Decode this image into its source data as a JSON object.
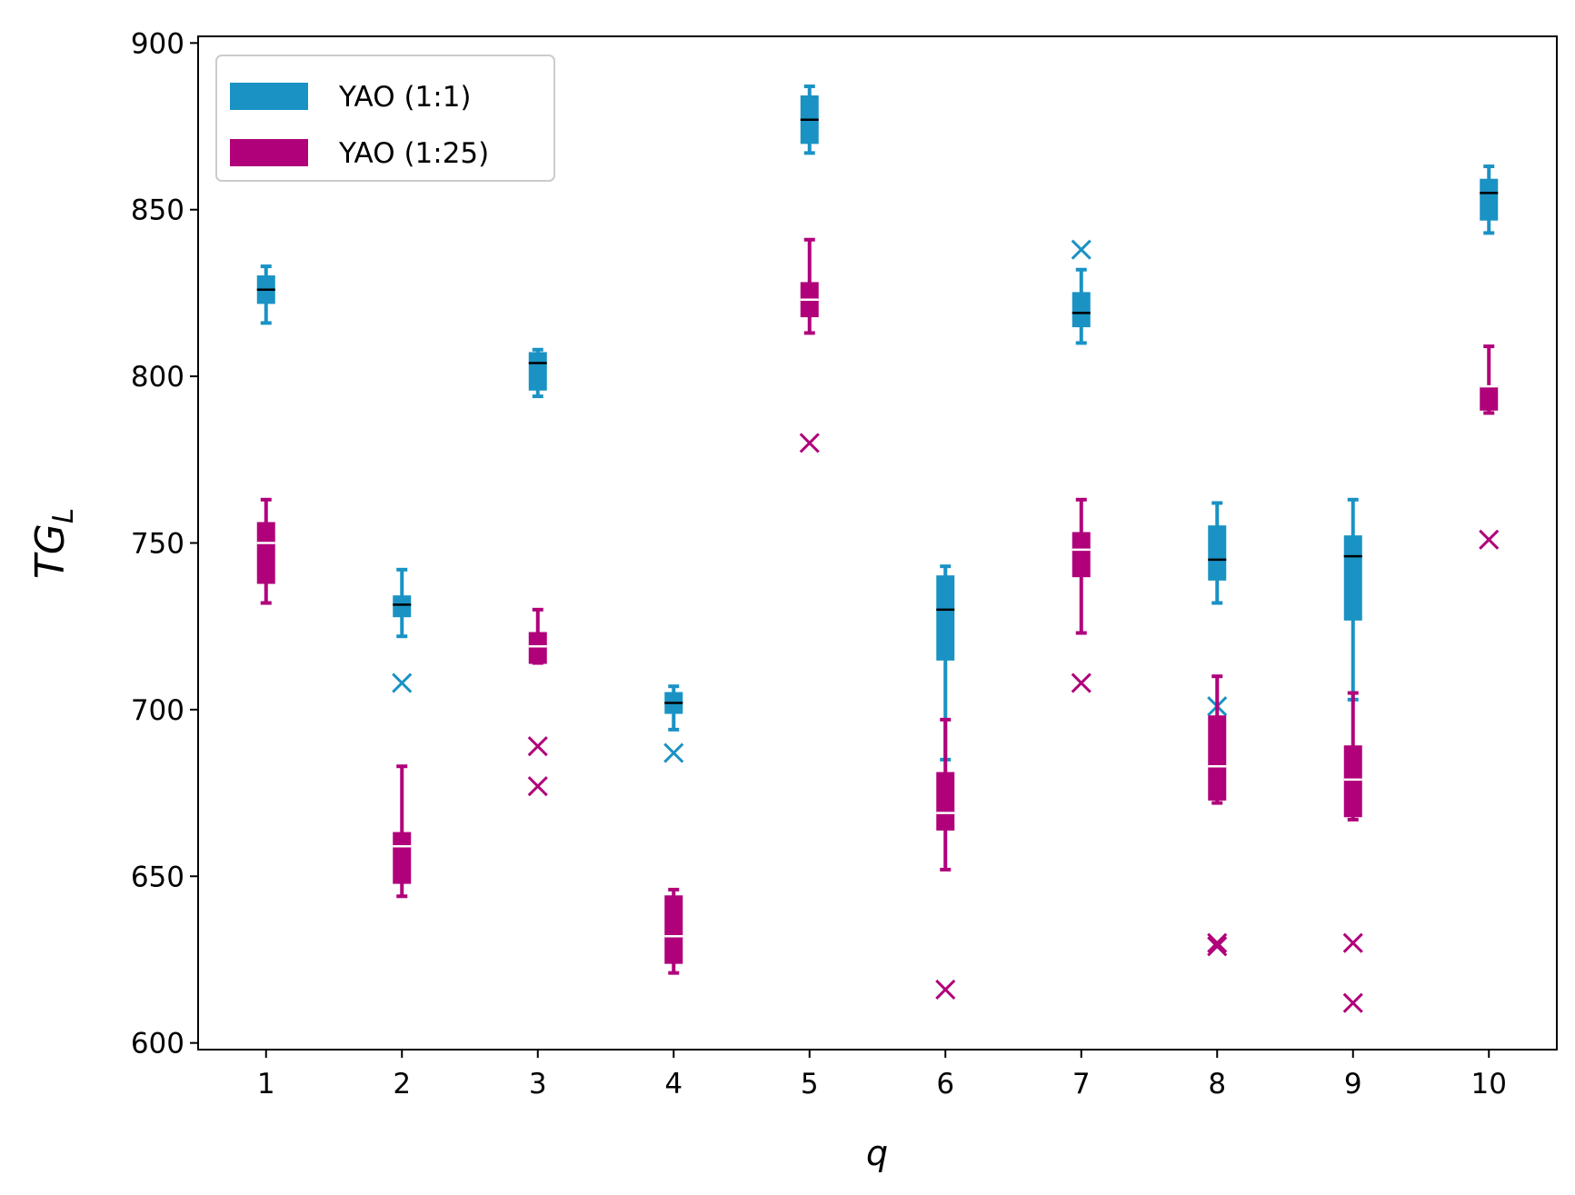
{
  "chart_data": {
    "type": "box",
    "ylabel": {
      "main": "TG",
      "sub": "L"
    },
    "xlabel": "q",
    "x": [
      1,
      2,
      3,
      4,
      5,
      6,
      7,
      8,
      9,
      10
    ],
    "xlim": [
      0.5,
      10.5
    ],
    "xticks": [
      1,
      2,
      3,
      4,
      5,
      6,
      7,
      8,
      9,
      10
    ],
    "ylim": [
      598,
      902
    ],
    "yticks": [
      600,
      650,
      700,
      750,
      800,
      850,
      900
    ],
    "legend": "upper left",
    "series": [
      {
        "name": "YAO (1:1)",
        "color": "#1a92c4",
        "median_color": "#000000",
        "boxes": [
          {
            "whislo": 816,
            "q1": 822,
            "med": 826,
            "q3": 830,
            "whishi": 833,
            "fliers": []
          },
          {
            "whislo": 722,
            "q1": 728,
            "med": 731.5,
            "q3": 734,
            "whishi": 742,
            "fliers": [
              708
            ]
          },
          {
            "whislo": 794,
            "q1": 796,
            "med": 804,
            "q3": 807,
            "whishi": 808,
            "fliers": []
          },
          {
            "whislo": 694,
            "q1": 699,
            "med": 702,
            "q3": 705,
            "whishi": 707,
            "fliers": [
              687
            ]
          },
          {
            "whislo": 867,
            "q1": 870,
            "med": 877,
            "q3": 884,
            "whishi": 887,
            "fliers": []
          },
          {
            "whislo": 685,
            "q1": 715,
            "med": 730,
            "q3": 740,
            "whishi": 743,
            "fliers": []
          },
          {
            "whislo": 810,
            "q1": 815,
            "med": 819,
            "q3": 825,
            "whishi": 832,
            "fliers": [
              838
            ]
          },
          {
            "whislo": 732,
            "q1": 739,
            "med": 745,
            "q3": 755,
            "whishi": 762,
            "fliers": [
              701
            ]
          },
          {
            "whislo": 703,
            "q1": 727,
            "med": 746,
            "q3": 752,
            "whishi": 763,
            "fliers": []
          },
          {
            "whislo": 843,
            "q1": 847,
            "med": 855,
            "q3": 859,
            "whishi": 863,
            "fliers": []
          }
        ]
      },
      {
        "name": "YAO (1:25)",
        "color": "#b0007a",
        "median_color": "#ffffff",
        "boxes": [
          {
            "whislo": 732,
            "q1": 738,
            "med": 750,
            "q3": 756,
            "whishi": 763,
            "fliers": []
          },
          {
            "whislo": 644,
            "q1": 648,
            "med": 659,
            "q3": 663,
            "whishi": 683,
            "fliers": []
          },
          {
            "whislo": 714,
            "q1": 714,
            "med": 719,
            "q3": 723,
            "whishi": 730,
            "fliers": [
              689,
              677
            ]
          },
          {
            "whislo": 621,
            "q1": 624,
            "med": 632,
            "q3": 644,
            "whishi": 646,
            "fliers": []
          },
          {
            "whislo": 813,
            "q1": 818,
            "med": 823,
            "q3": 828,
            "whishi": 841,
            "fliers": [
              780
            ]
          },
          {
            "whislo": 652,
            "q1": 664,
            "med": 669,
            "q3": 681,
            "whishi": 697,
            "fliers": [
              616
            ]
          },
          {
            "whislo": 723,
            "q1": 740,
            "med": 748,
            "q3": 753,
            "whishi": 763,
            "fliers": [
              708
            ]
          },
          {
            "whislo": 672,
            "q1": 673,
            "med": 683,
            "q3": 698,
            "whishi": 710,
            "fliers": [
              630,
              629
            ]
          },
          {
            "whislo": 667,
            "q1": 668,
            "med": 679,
            "q3": 689,
            "whishi": 705,
            "fliers": [
              630,
              612
            ]
          },
          {
            "whislo": 789,
            "q1": 790,
            "med": 797,
            "q3": 797,
            "whishi": 809,
            "fliers": [
              751
            ]
          }
        ]
      }
    ]
  }
}
